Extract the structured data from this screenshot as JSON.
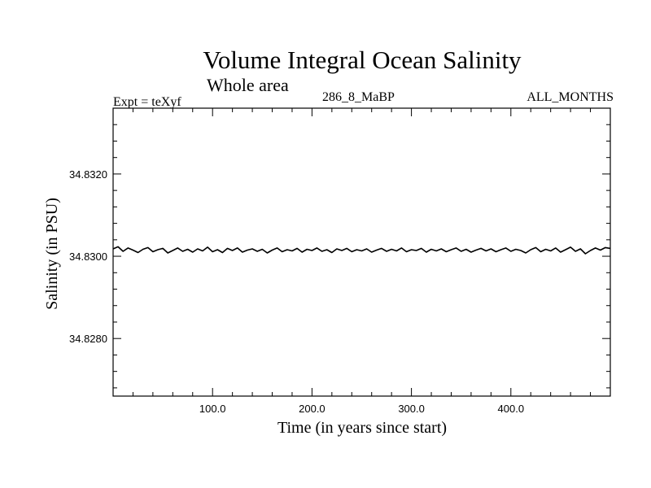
{
  "chart_data": {
    "type": "line",
    "title": "Volume Integral Ocean Salinity",
    "subtitle": "Whole area",
    "annotations": {
      "left": "Expt = teXyf",
      "center": "286_8_MaBP",
      "right": "ALL_MONTHS"
    },
    "xlabel": "Time (in years since start)",
    "ylabel": "Salinity (in PSU)",
    "xlim": [
      0,
      500
    ],
    "ylim": [
      34.8266,
      34.8336
    ],
    "x_ticks": [
      100.0,
      200.0,
      300.0,
      400.0
    ],
    "x_tick_labels": [
      "100.0",
      "200.0",
      "300.0",
      "400.0"
    ],
    "y_ticks": [
      34.828,
      34.83,
      34.832
    ],
    "y_tick_labels": [
      "34.8280",
      "34.8300",
      "34.8320"
    ],
    "grid": false,
    "series": [
      {
        "color": "#000000",
        "x": [
          0,
          5,
          10,
          15,
          20,
          25,
          30,
          35,
          40,
          45,
          50,
          55,
          60,
          65,
          70,
          75,
          80,
          85,
          90,
          95,
          100,
          105,
          110,
          115,
          120,
          125,
          130,
          135,
          140,
          145,
          150,
          155,
          160,
          165,
          170,
          175,
          180,
          185,
          190,
          195,
          200,
          205,
          210,
          215,
          220,
          225,
          230,
          235,
          240,
          245,
          250,
          255,
          260,
          265,
          270,
          275,
          280,
          285,
          290,
          295,
          300,
          305,
          310,
          315,
          320,
          325,
          330,
          335,
          340,
          345,
          350,
          355,
          360,
          365,
          370,
          375,
          380,
          385,
          390,
          395,
          400,
          405,
          410,
          415,
          420,
          425,
          430,
          435,
          440,
          445,
          450,
          455,
          460,
          465,
          470,
          475,
          480,
          485,
          490,
          495,
          500
        ],
        "values": [
          34.83018,
          34.83023,
          34.83012,
          34.8302,
          34.83015,
          34.83009,
          34.83017,
          34.83021,
          34.83011,
          34.83016,
          34.83019,
          34.83008,
          34.83014,
          34.8302,
          34.83012,
          34.83017,
          34.8301,
          34.83018,
          34.83013,
          34.83022,
          34.83011,
          34.83016,
          34.83009,
          34.83019,
          34.83014,
          34.8302,
          34.8301,
          34.83015,
          34.83018,
          34.83012,
          34.83017,
          34.83008,
          34.83015,
          34.8302,
          34.83011,
          34.83016,
          34.83013,
          34.83019,
          34.8301,
          34.83017,
          34.83014,
          34.8302,
          34.83012,
          34.83016,
          34.83009,
          34.83018,
          34.83014,
          34.83019,
          34.83011,
          34.83016,
          34.83013,
          34.83018,
          34.8301,
          34.83015,
          34.83019,
          34.83012,
          34.83017,
          34.83013,
          34.8302,
          34.83011,
          34.83016,
          34.83014,
          34.83019,
          34.8301,
          34.83017,
          34.83013,
          34.83018,
          34.83011,
          34.83016,
          34.8302,
          34.83012,
          34.83017,
          34.8301,
          34.83015,
          34.83019,
          34.83013,
          34.83018,
          34.83011,
          34.83016,
          34.8302,
          34.83012,
          34.83017,
          34.83014,
          34.83008,
          34.83016,
          34.83021,
          34.83011,
          34.83017,
          34.83013,
          34.8302,
          34.8301,
          34.83016,
          34.83022,
          34.83012,
          34.83018,
          34.83006,
          34.83014,
          34.8302,
          34.83015,
          34.83021,
          34.83019
        ]
      }
    ]
  }
}
